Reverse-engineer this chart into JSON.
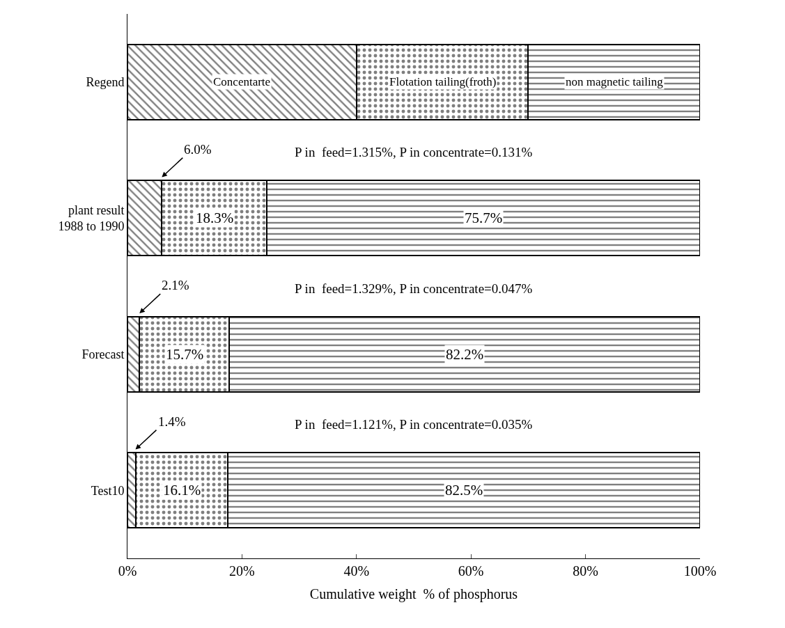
{
  "chart_data": {
    "type": "bar",
    "orientation": "horizontal",
    "stacked": true,
    "xlabel": "Cumulative weight  % of phosphorus",
    "categories": [
      "Regend",
      "plant result\n1988 to 1990",
      "Forecast",
      "Test10"
    ],
    "series": [
      {
        "name": "Concentarte",
        "color": "#000000",
        "values": [
          40,
          6.0,
          2.1,
          1.4
        ],
        "value_labels": [
          null,
          "6.0%",
          "2.1%",
          "1.4%"
        ]
      },
      {
        "name": "Flotation tailing(froth)",
        "color": "#000000",
        "values": [
          30,
          18.3,
          15.7,
          16.1
        ],
        "value_labels": [
          null,
          "18.3%",
          "15.7%",
          "16.1%"
        ]
      },
      {
        "name": "non magnetic tailing",
        "color": "#000000",
        "values": [
          30,
          75.7,
          82.2,
          82.5
        ],
        "value_labels": [
          null,
          "75.7%",
          "82.2%",
          "82.5%"
        ]
      }
    ],
    "annotations": [
      "P in  feed=1.315%, P in concentrate=0.131%",
      "P in  feed=1.329%, P in concentrate=0.047%",
      "P in  feed=1.121%, P in concentrate=0.035%"
    ],
    "xlim": [
      0,
      100
    ],
    "xticks": [
      {
        "value": 0,
        "label": "0%"
      },
      {
        "value": 20,
        "label": "20%"
      },
      {
        "value": 40,
        "label": "40%"
      },
      {
        "value": 60,
        "label": "60%"
      },
      {
        "value": 80,
        "label": "80%"
      },
      {
        "value": 100,
        "label": "100%"
      }
    ],
    "legend": false
  }
}
